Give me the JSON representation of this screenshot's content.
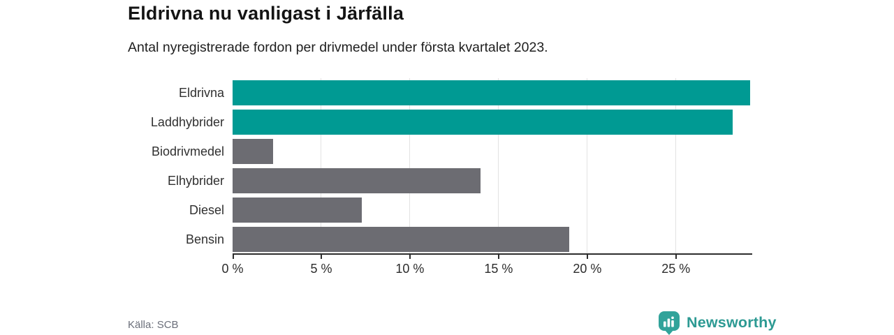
{
  "header": {
    "title": "Eldrivna nu vanligast i Järfälla",
    "subtitle": "Antal nyregistrerade fordon per drivmedel under första kvartalet 2023."
  },
  "chart_data": {
    "type": "bar",
    "orientation": "horizontal",
    "title": "Eldrivna nu vanligast i Järfälla",
    "subtitle": "Antal nyregistrerade fordon per drivmedel under första kvartalet 2023.",
    "categories": [
      "Eldrivna",
      "Laddhybrider",
      "Biodrivmedel",
      "Elhybrider",
      "Diesel",
      "Bensin"
    ],
    "values": [
      29.2,
      28.2,
      2.3,
      14.0,
      7.3,
      19.0
    ],
    "unit": "%",
    "highlighted_categories": [
      "Eldrivna",
      "Laddhybrider"
    ],
    "xlabel": "",
    "ylabel": "",
    "xlim": [
      0,
      29.3
    ],
    "xticks": [
      0,
      5,
      10,
      15,
      20,
      25
    ],
    "xtick_labels": [
      "0 %",
      "5 %",
      "10 %",
      "15 %",
      "20 %",
      "25 %"
    ],
    "grid": "vertical",
    "legend": "none"
  },
  "colors": {
    "bar_highlight": "#009a93",
    "bar_default": "#6c6c72",
    "gridline": "#e2e2e2",
    "axis": "#2d2d2d",
    "brand_teal": "#2d9a93",
    "logo_icon_teal": "#31a39a"
  },
  "footer": {
    "source": "Källa: SCB",
    "brand": "Newsworthy"
  }
}
